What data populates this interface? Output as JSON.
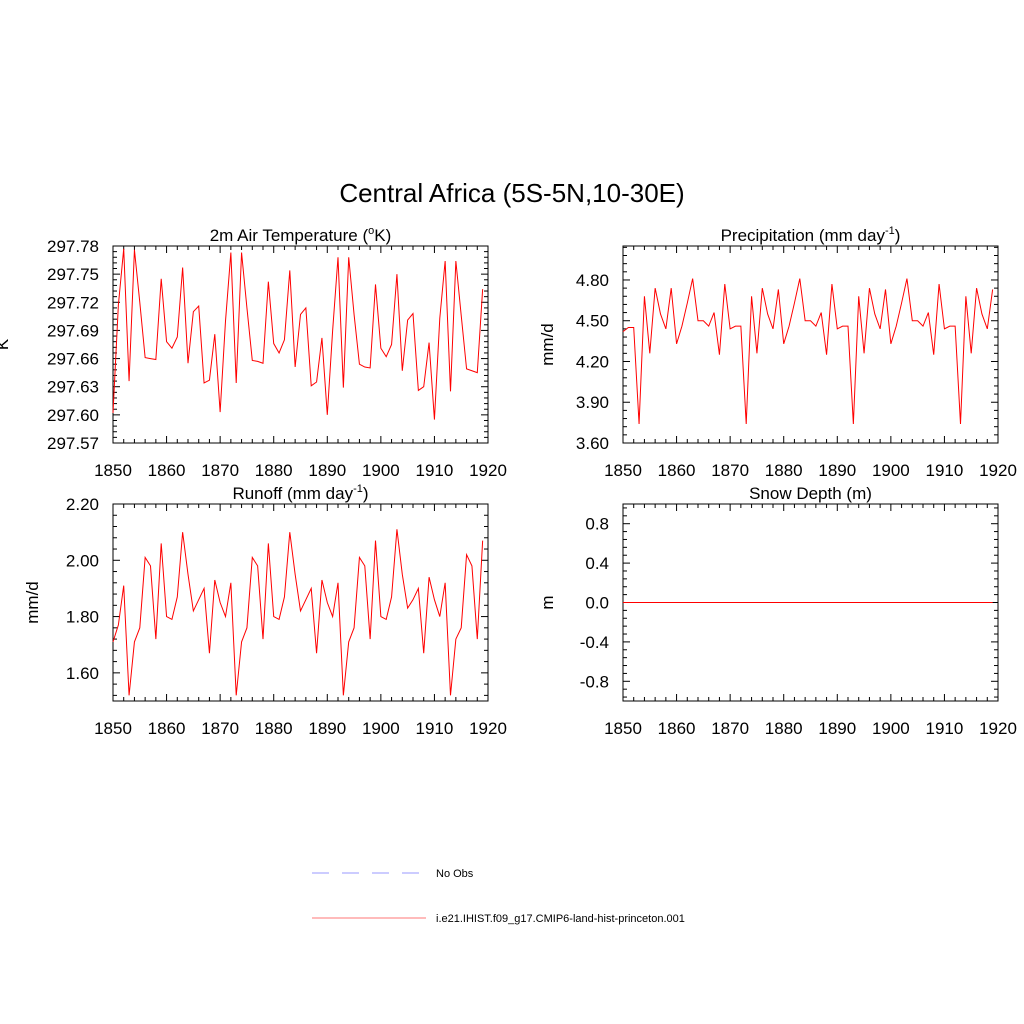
{
  "title": "Central Africa (5S-5N,10-30E)",
  "legend": [
    {
      "label": "No Obs",
      "color": "#9999ff",
      "dash": true
    },
    {
      "label": "i.e21.IHIST.f09_g17.CMIP6-land-hist-princeton.001",
      "color": "#ff7777",
      "dash": false
    }
  ],
  "line_color": "#ff0000",
  "chart_data": [
    {
      "type": "line",
      "title": "2m Air Temperature (",
      "title_sup": "o",
      "title_after": "K)",
      "ylabel": "K",
      "xlim": [
        1850,
        1920
      ],
      "ylim": [
        297.57,
        297.78
      ],
      "xticks": [
        "1850",
        "1860",
        "1870",
        "1880",
        "1890",
        "1900",
        "1910",
        "1920"
      ],
      "yticks": [
        "297.57",
        "297.60",
        "297.63",
        "297.66",
        "297.69",
        "297.72",
        "297.75",
        "297.78"
      ],
      "series": [
        {
          "x": [
            1850,
            1851,
            1852,
            1853,
            1854,
            1855,
            1856,
            1857,
            1858,
            1859,
            1860,
            1861,
            1862,
            1863,
            1864,
            1865,
            1866,
            1867,
            1868,
            1869,
            1870,
            1871,
            1872,
            1873,
            1874,
            1875,
            1876,
            1877,
            1878,
            1879,
            1880,
            1881,
            1882,
            1883,
            1884,
            1885,
            1886,
            1887,
            1888,
            1889,
            1890,
            1891,
            1892,
            1893,
            1894,
            1895,
            1896,
            1897,
            1898,
            1899,
            1900,
            1901,
            1902,
            1903,
            1904,
            1905,
            1906,
            1907,
            1908,
            1909,
            1910,
            1911,
            1912,
            1913,
            1914,
            1915,
            1916,
            1917,
            1918,
            1919
          ],
          "y": [
            297.602,
            297.717,
            297.777,
            297.636,
            297.776,
            297.72,
            297.661,
            297.66,
            297.659,
            297.745,
            297.678,
            297.671,
            297.683,
            297.757,
            297.655,
            297.71,
            297.716,
            297.634,
            297.637,
            297.686,
            297.603,
            297.7,
            297.773,
            297.634,
            297.773,
            297.714,
            297.658,
            297.657,
            297.655,
            297.742,
            297.676,
            297.666,
            297.68,
            297.754,
            297.651,
            297.707,
            297.714,
            297.631,
            297.635,
            297.682,
            297.6,
            297.69,
            297.768,
            297.629,
            297.768,
            297.707,
            297.654,
            297.651,
            297.65,
            297.739,
            297.671,
            297.662,
            297.675,
            297.75,
            297.647,
            297.701,
            297.708,
            297.626,
            297.63,
            297.677,
            297.595,
            297.703,
            297.764,
            297.625,
            297.764,
            297.706,
            297.649,
            297.647,
            297.645,
            297.734
          ]
        }
      ]
    },
    {
      "type": "line",
      "title": "Precipitation (mm day",
      "title_sup": "-1",
      "title_after": ")",
      "ylabel": "mm/d",
      "xlim": [
        1850,
        1920
      ],
      "ylim": [
        3.6,
        5.05
      ],
      "xticks": [
        "1850",
        "1860",
        "1870",
        "1880",
        "1890",
        "1900",
        "1910",
        "1920"
      ],
      "yticks": [
        "3.60",
        "3.90",
        "4.20",
        "4.50",
        "4.80"
      ],
      "series": [
        {
          "x": [
            1850,
            1851,
            1852,
            1853,
            1854,
            1855,
            1856,
            1857,
            1858,
            1859,
            1860,
            1861,
            1862,
            1863,
            1864,
            1865,
            1866,
            1867,
            1868,
            1869,
            1870,
            1871,
            1872,
            1873,
            1874,
            1875,
            1876,
            1877,
            1878,
            1879,
            1880,
            1881,
            1882,
            1883,
            1884,
            1885,
            1886,
            1887,
            1888,
            1889,
            1890,
            1891,
            1892,
            1893,
            1894,
            1895,
            1896,
            1897,
            1898,
            1899,
            1900,
            1901,
            1902,
            1903,
            1904,
            1905,
            1906,
            1907,
            1908,
            1909,
            1910,
            1911,
            1912,
            1913,
            1914,
            1915,
            1916,
            1917,
            1918,
            1919
          ],
          "y": [
            4.42,
            4.45,
            4.45,
            3.74,
            4.68,
            4.26,
            4.74,
            4.55,
            4.44,
            4.74,
            4.33,
            4.46,
            4.63,
            4.81,
            4.5,
            4.5,
            4.46,
            4.56,
            4.25,
            4.77,
            4.44,
            4.46,
            4.46,
            3.74,
            4.68,
            4.26,
            4.74,
            4.55,
            4.44,
            4.73,
            4.33,
            4.46,
            4.63,
            4.81,
            4.5,
            4.5,
            4.46,
            4.56,
            4.25,
            4.77,
            4.44,
            4.46,
            4.46,
            3.74,
            4.68,
            4.26,
            4.74,
            4.55,
            4.44,
            4.73,
            4.33,
            4.46,
            4.63,
            4.81,
            4.5,
            4.5,
            4.46,
            4.56,
            4.25,
            4.77,
            4.44,
            4.46,
            4.46,
            3.74,
            4.68,
            4.26,
            4.74,
            4.55,
            4.44,
            4.73
          ]
        }
      ]
    },
    {
      "type": "line",
      "title": "Runoff (mm day",
      "title_sup": "-1",
      "title_after": ")",
      "ylabel": "mm/d",
      "xlim": [
        1850,
        1920
      ],
      "ylim": [
        1.5,
        2.2
      ],
      "xticks": [
        "1850",
        "1860",
        "1870",
        "1880",
        "1890",
        "1900",
        "1910",
        "1920"
      ],
      "yticks": [
        "1.60",
        "1.80",
        "2.00",
        "2.20"
      ],
      "series": [
        {
          "x": [
            1850,
            1851,
            1852,
            1853,
            1854,
            1855,
            1856,
            1857,
            1858,
            1859,
            1860,
            1861,
            1862,
            1863,
            1864,
            1865,
            1866,
            1867,
            1868,
            1869,
            1870,
            1871,
            1872,
            1873,
            1874,
            1875,
            1876,
            1877,
            1878,
            1879,
            1880,
            1881,
            1882,
            1883,
            1884,
            1885,
            1886,
            1887,
            1888,
            1889,
            1890,
            1891,
            1892,
            1893,
            1894,
            1895,
            1896,
            1897,
            1898,
            1899,
            1900,
            1901,
            1902,
            1903,
            1904,
            1905,
            1906,
            1907,
            1908,
            1909,
            1910,
            1911,
            1912,
            1913,
            1914,
            1915,
            1916,
            1917,
            1918,
            1919
          ],
          "y": [
            1.71,
            1.77,
            1.91,
            1.52,
            1.71,
            1.76,
            2.01,
            1.98,
            1.72,
            2.06,
            1.8,
            1.79,
            1.87,
            2.1,
            1.95,
            1.82,
            1.86,
            1.9,
            1.67,
            1.93,
            1.85,
            1.8,
            1.92,
            1.52,
            1.71,
            1.76,
            2.01,
            1.98,
            1.72,
            2.06,
            1.8,
            1.79,
            1.87,
            2.1,
            1.95,
            1.82,
            1.86,
            1.9,
            1.67,
            1.93,
            1.85,
            1.8,
            1.92,
            1.52,
            1.71,
            1.76,
            2.01,
            1.98,
            1.72,
            2.07,
            1.8,
            1.79,
            1.87,
            2.11,
            1.95,
            1.83,
            1.86,
            1.9,
            1.67,
            1.94,
            1.86,
            1.8,
            1.92,
            1.52,
            1.72,
            1.76,
            2.02,
            1.98,
            1.72,
            2.07
          ]
        }
      ]
    },
    {
      "type": "line",
      "title": "Snow Depth (m)",
      "title_sup": "",
      "title_after": "",
      "ylabel": "m",
      "xlim": [
        1850,
        1920
      ],
      "ylim": [
        -1.0,
        1.0
      ],
      "xticks": [
        "1850",
        "1860",
        "1870",
        "1880",
        "1890",
        "1900",
        "1910",
        "1920"
      ],
      "yticks": [
        "-0.8",
        "-0.4",
        "0.0",
        "0.4",
        "0.8"
      ],
      "series": [
        {
          "x": [
            1850,
            1919
          ],
          "y": [
            0,
            0
          ]
        }
      ]
    }
  ]
}
